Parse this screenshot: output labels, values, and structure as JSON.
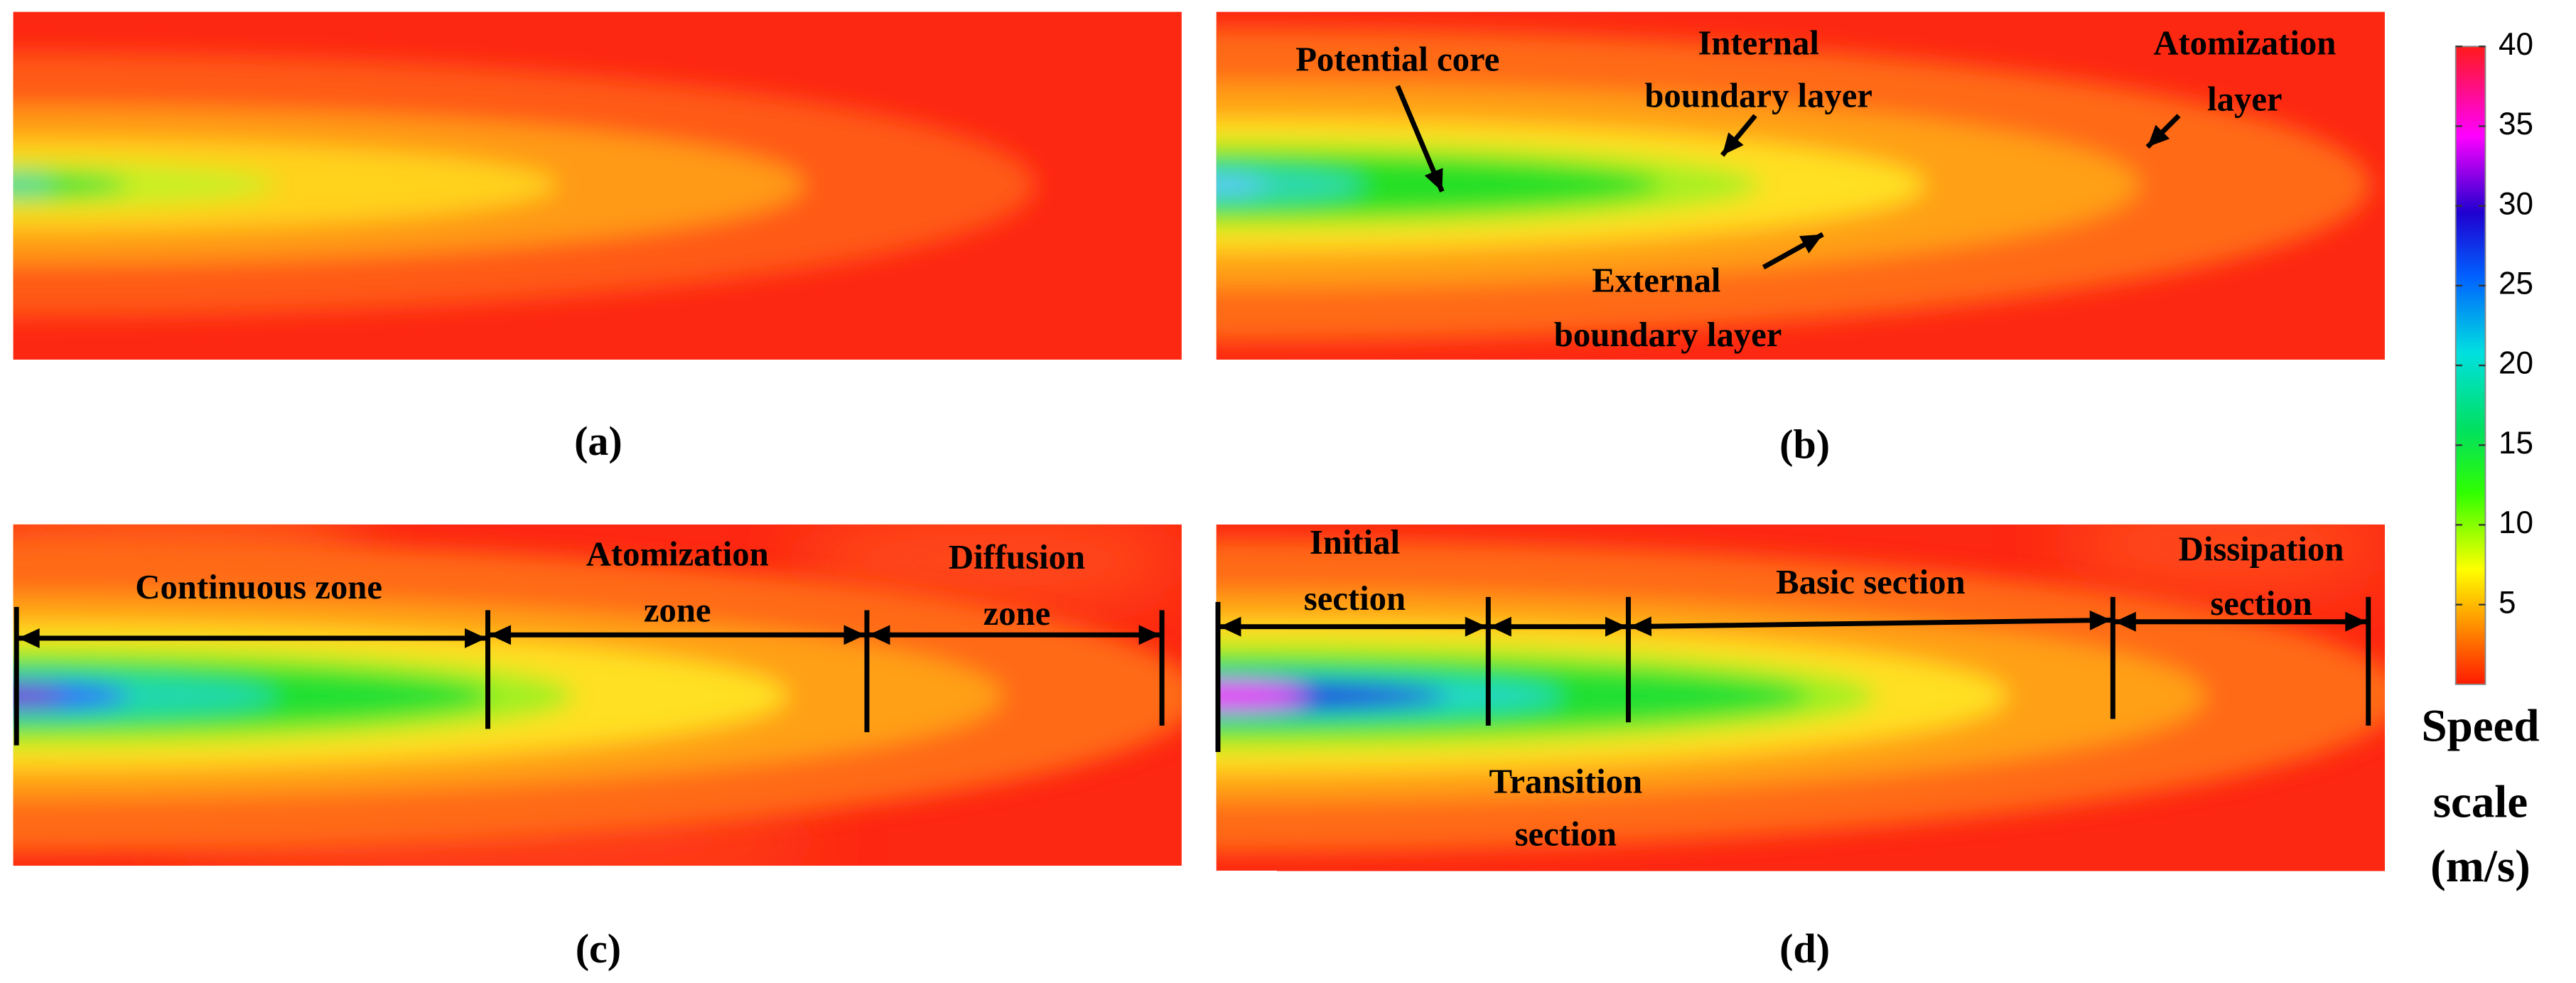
{
  "panels": [
    {
      "label": "(a)"
    },
    {
      "label": "(b)",
      "annotations": [
        {
          "lines": [
            "Potential core"
          ]
        },
        {
          "lines": [
            "Internal",
            "boundary layer"
          ]
        },
        {
          "lines": [
            "Atomization",
            "layer"
          ]
        },
        {
          "lines": [
            "External",
            "boundary layer"
          ]
        }
      ]
    },
    {
      "label": "(c)",
      "annotations": [
        {
          "lines": [
            "Continuous  zone"
          ]
        },
        {
          "lines": [
            "Atomization",
            "zone"
          ]
        },
        {
          "lines": [
            "Diffusion",
            "zone"
          ]
        }
      ]
    },
    {
      "label": "(d)",
      "annotations": [
        {
          "lines": [
            "Initial",
            "section"
          ]
        },
        {
          "lines": [
            "Basic section"
          ]
        },
        {
          "lines": [
            "Dissipation",
            "section"
          ]
        },
        {
          "lines": [
            "Transition",
            "section"
          ]
        }
      ]
    }
  ],
  "colorbar": {
    "range": [
      0,
      40
    ],
    "ticks": [
      5,
      10,
      15,
      20,
      25,
      30,
      35,
      40
    ],
    "title": [
      "Speed",
      "scale",
      "(m/s)"
    ]
  }
}
